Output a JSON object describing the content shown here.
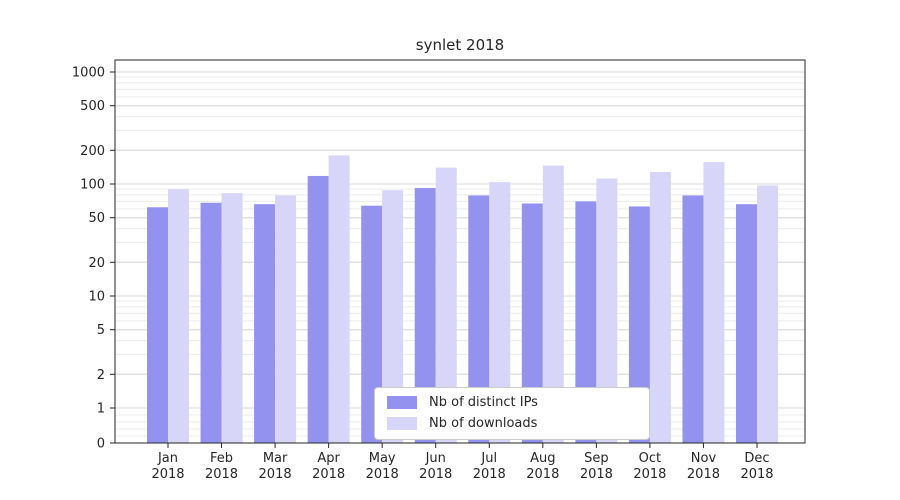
{
  "title": "synlet 2018",
  "chart_data": {
    "type": "bar",
    "title": "synlet 2018",
    "yscale": "symlog",
    "grid": true,
    "legend_position": "lower center",
    "categories": [
      "Jan",
      "Feb",
      "Mar",
      "Apr",
      "May",
      "Jun",
      "Jul",
      "Aug",
      "Sep",
      "Oct",
      "Nov",
      "Dec"
    ],
    "year_label": "2018",
    "series": [
      {
        "name": "Nb of distinct IPs",
        "color": "#9392ee",
        "values": [
          62,
          68,
          66,
          118,
          64,
          92,
          79,
          67,
          70,
          63,
          79,
          66
        ]
      },
      {
        "name": "Nb of downloads",
        "color": "#d7d6f9",
        "values": [
          90,
          83,
          79,
          180,
          88,
          140,
          104,
          146,
          112,
          128,
          157,
          97
        ]
      }
    ],
    "yticks": [
      0,
      1,
      2,
      5,
      10,
      20,
      50,
      100,
      200,
      500,
      1000
    ],
    "ylim": [
      0,
      1280
    ],
    "colors": {
      "grid_major": "#d9d9d9",
      "grid_minor": "#ececec",
      "axis": "#262626",
      "background": "#ffffff",
      "legend_border": "#cccccc"
    }
  }
}
